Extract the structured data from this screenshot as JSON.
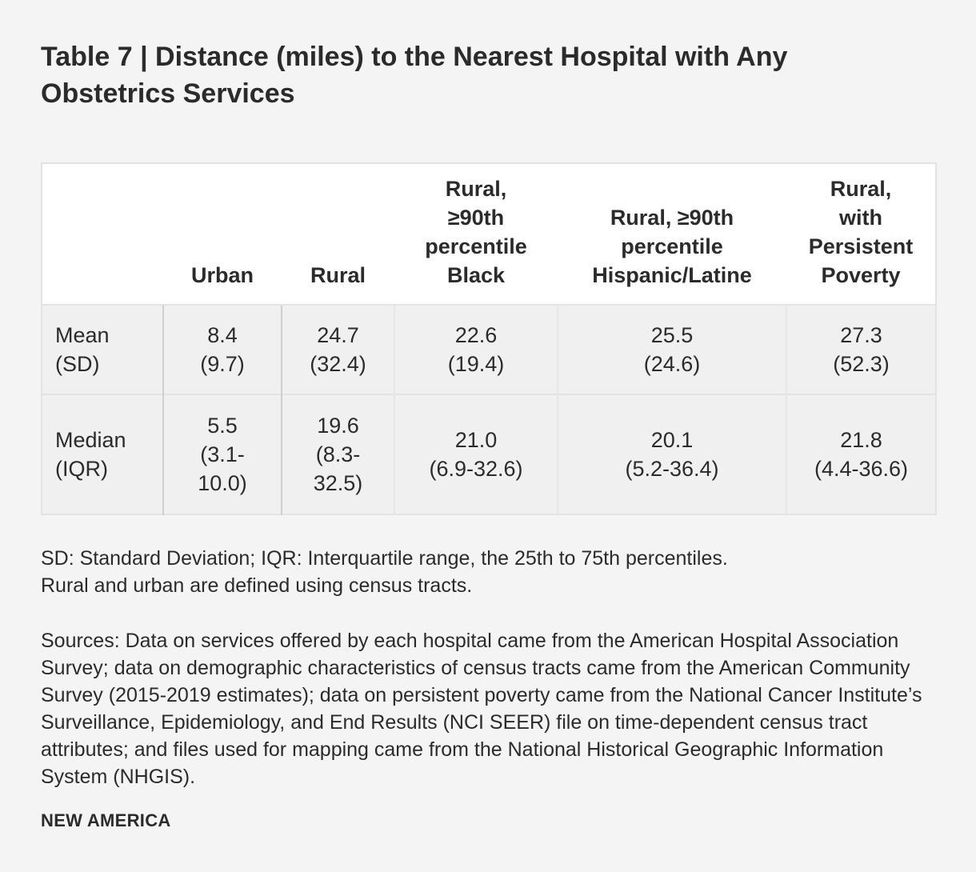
{
  "title": "Table 7 | Distance (miles) to the Nearest Hospital with Any Obstetrics Services",
  "table": {
    "headers": [
      [
        ""
      ],
      [
        "Urban"
      ],
      [
        "Rural"
      ],
      [
        "Rural,",
        "≥90th",
        "percentile",
        "Black"
      ],
      [
        "Rural, ≥90th",
        "percentile",
        "Hispanic/Latine"
      ],
      [
        "Rural,",
        "with",
        "Persistent",
        "Poverty"
      ]
    ],
    "rows": [
      {
        "label": [
          "Mean",
          "(SD)"
        ],
        "cells": [
          [
            "8.4",
            "(9.7)"
          ],
          [
            "24.7",
            "(32.4)"
          ],
          [
            "22.6",
            "(19.4)"
          ],
          [
            "25.5",
            "(24.6)"
          ],
          [
            "27.3",
            "(52.3)"
          ]
        ]
      },
      {
        "label": [
          "Median",
          "(IQR)"
        ],
        "cells": [
          [
            "5.5",
            "(3.1-",
            "10.0)"
          ],
          [
            "19.6",
            "(8.3-",
            "32.5)"
          ],
          [
            "21.0",
            "(6.9-32.6)"
          ],
          [
            "20.1",
            "(5.2-36.4)"
          ],
          [
            "21.8",
            "(4.4-36.6)"
          ]
        ]
      }
    ]
  },
  "notes": [
    "SD: Standard Deviation; IQR: Interquartile range, the 25th to 75th percentiles.",
    "Rural and urban are defined using census tracts."
  ],
  "sources": "Sources: Data on services offered by each hospital came from the American Hospital Association Survey; data on demographic characteristics of census tracts came from the American Community Survey (2015-2019 estimates); data on persistent poverty came from the National Cancer Institute’s Surveillance, Epidemiology, and End Results (NCI SEER) file on time-dependent census tract attributes; and files used for mapping came from the National Historical Geographic Information System (NHGIS).",
  "brand": "NEW AMERICA"
}
